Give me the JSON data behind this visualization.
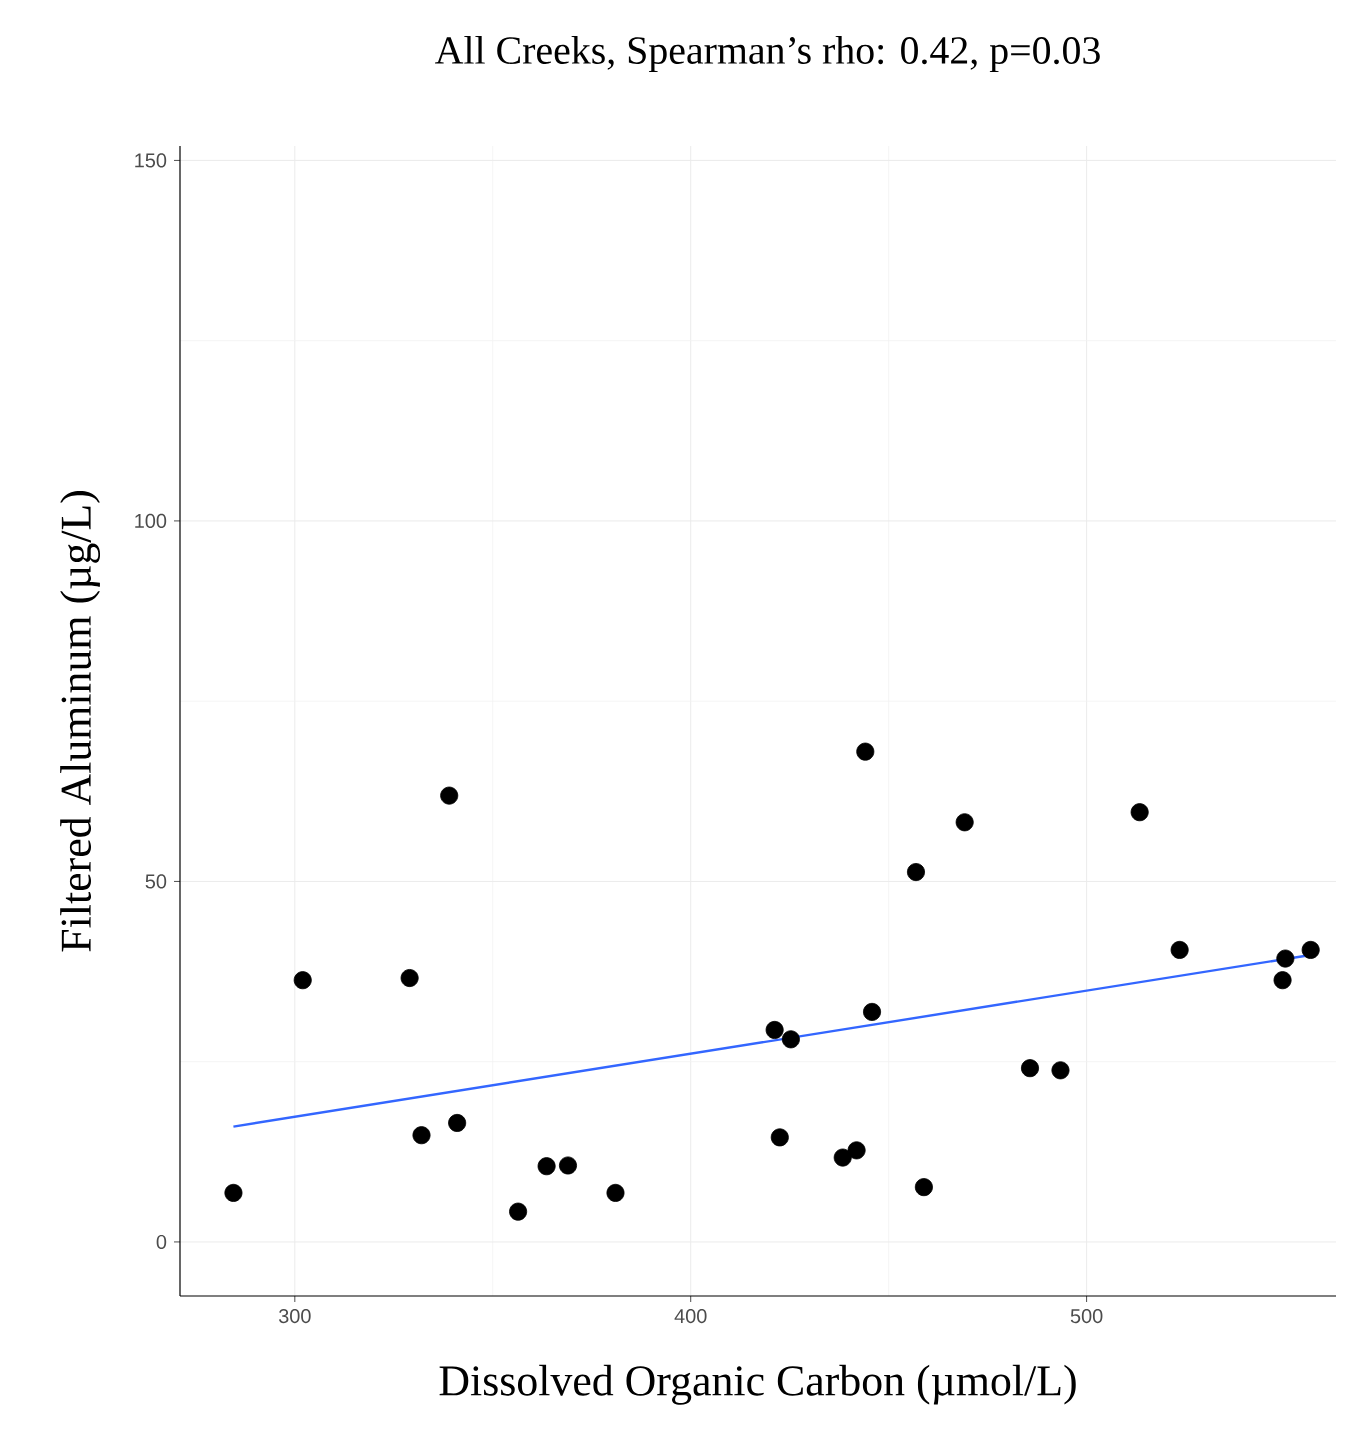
{
  "chart_data": {
    "type": "scatter",
    "title": "All Creeks, Spearman’s rho: 0.42, p=0.03",
    "xlabel": "Dissolved Organic Carbon (µmol/L)",
    "ylabel": "Filtered Aluminum (µg/L)",
    "xlim": [
      271,
      563
    ],
    "ylim": [
      -7.5,
      152
    ],
    "xticks": [
      300,
      400,
      500
    ],
    "yticks": [
      0,
      50,
      100,
      150
    ],
    "grid": true,
    "series": [
      {
        "type": "scatter",
        "marker": "circle",
        "color": "#000000",
        "x": [
          284.5,
          302,
          329,
          339,
          332,
          341,
          356.4,
          363.6,
          369,
          381,
          421.2,
          425.3,
          422.5,
          438.4,
          441.9,
          444.1,
          445.8,
          456.9,
          458.9,
          469.2,
          485.7,
          493.4,
          513.4,
          523.5,
          550.2,
          549.5,
          556.6
        ],
        "values": [
          6.8,
          36.3,
          36.6,
          61.9,
          14.8,
          16.5,
          4.2,
          10.5,
          10.6,
          6.8,
          29.4,
          28.1,
          14.5,
          11.7,
          12.7,
          68,
          31.9,
          51.3,
          7.6,
          58.2,
          24.1,
          23.8,
          59.6,
          40.5,
          39.3,
          36.3,
          40.5
        ]
      },
      {
        "type": "line",
        "color": "#3366ff",
        "x": [
          284.5,
          556.6
        ],
        "values": [
          16.0,
          39.8
        ]
      }
    ]
  }
}
